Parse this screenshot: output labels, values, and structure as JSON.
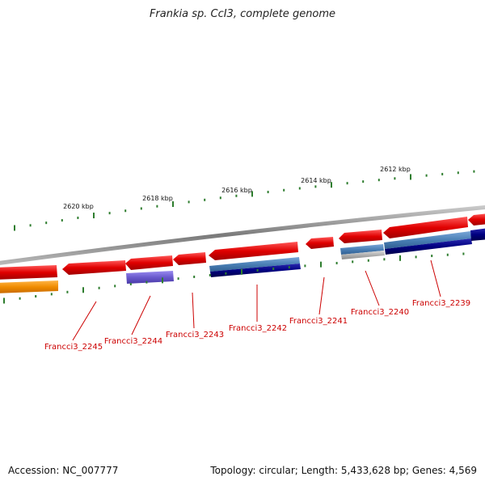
{
  "title": "Frankia sp. CcI3, complete genome",
  "colors": {
    "backbone": "#8a8a8a",
    "tick": "#2e7d2e",
    "gene_forward": "#e00000",
    "gene_label": "#cc0000",
    "orange_feature": "#f08c00",
    "purple_feature": "#6a5acd",
    "blue_feature": "#4a7fb5",
    "navy_feature": "#000080",
    "gray_feature": "#b0b0b0"
  },
  "ticks": [
    {
      "label": "2620 kbp"
    },
    {
      "label": "2618 kbp"
    },
    {
      "label": "2616 kbp"
    },
    {
      "label": "2614 kbp"
    },
    {
      "label": "2612 kbp"
    }
  ],
  "gene_labels": [
    {
      "label": "Francci3_2245"
    },
    {
      "label": "Francci3_2244"
    },
    {
      "label": "Francci3_2243"
    },
    {
      "label": "Francci3_2242"
    },
    {
      "label": "Francci3_2241"
    },
    {
      "label": "Francci3_2240"
    },
    {
      "label": "Francci3_2239"
    }
  ],
  "footer": {
    "accession": "Accession: NC_007777",
    "summary": "Topology: circular; Length: 5,433,628 bp; Genes: 4,569"
  }
}
